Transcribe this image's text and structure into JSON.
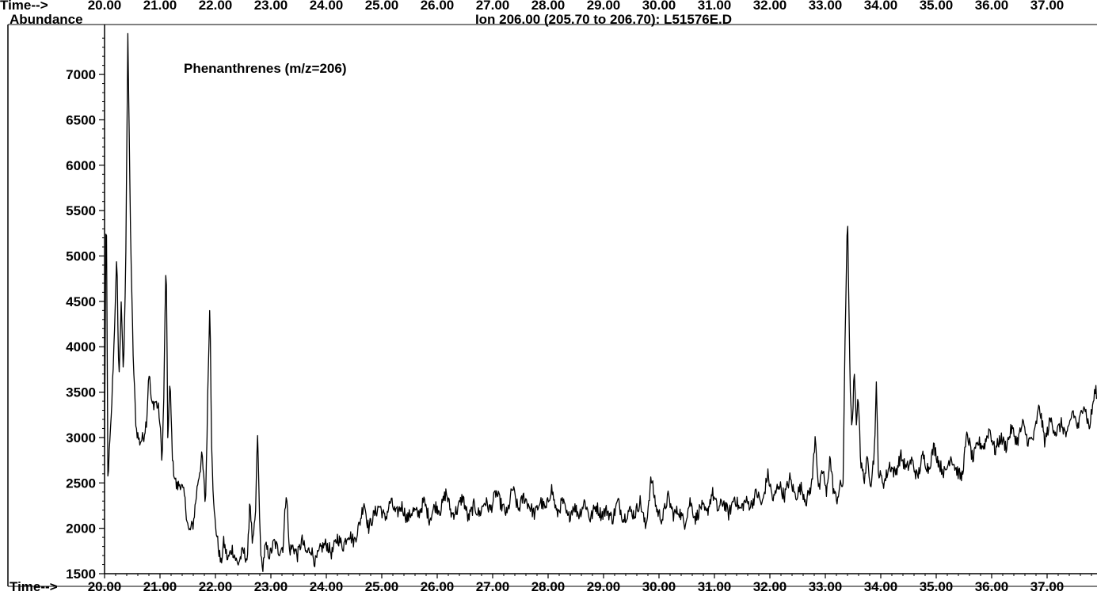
{
  "header": {
    "top_strip_label": "Time-->",
    "ylabel": "Abundance",
    "title": "Ion 206.00 (205.70 to 206.70): L51576E.D",
    "annotation": "Phenanthrenes (m/z=206)",
    "xlabel": "Time-->"
  },
  "chart_data": {
    "type": "line",
    "title": "Ion 206.00 (205.70 to 206.70): L51576E.D",
    "annotation": "Phenanthrenes (m/z=206)",
    "xlabel": "Time-->",
    "ylabel": "Abundance",
    "xlim": [
      20.0,
      37.9
    ],
    "ylim": [
      1500,
      7550
    ],
    "x_tick_labels": [
      "20.00",
      "21.00",
      "22.00",
      "23.00",
      "24.00",
      "25.00",
      "26.00",
      "27.00",
      "28.00",
      "29.00",
      "30.00",
      "31.00",
      "32.00",
      "33.00",
      "34.00",
      "35.00",
      "36.00",
      "37.00"
    ],
    "y_tick_labels": [
      "1500",
      "2000",
      "2500",
      "3000",
      "3500",
      "4000",
      "4500",
      "5000",
      "5500",
      "6000",
      "6500",
      "7000"
    ],
    "grid": false,
    "series_color": "#000000",
    "anchors": [
      [
        20.0,
        2900
      ],
      [
        20.03,
        5800
      ],
      [
        20.06,
        2550
      ],
      [
        20.12,
        3200
      ],
      [
        20.18,
        4200
      ],
      [
        20.22,
        5000
      ],
      [
        20.26,
        3600
      ],
      [
        20.3,
        4500
      ],
      [
        20.34,
        3700
      ],
      [
        20.38,
        4800
      ],
      [
        20.42,
        7450
      ],
      [
        20.47,
        5200
      ],
      [
        20.52,
        3800
      ],
      [
        20.57,
        3100
      ],
      [
        20.63,
        2950
      ],
      [
        20.7,
        3000
      ],
      [
        20.76,
        3200
      ],
      [
        20.8,
        3750
      ],
      [
        20.85,
        3350
      ],
      [
        20.92,
        3400
      ],
      [
        20.98,
        3300
      ],
      [
        21.04,
        2750
      ],
      [
        21.07,
        3500
      ],
      [
        21.11,
        5050
      ],
      [
        21.14,
        3000
      ],
      [
        21.18,
        3600
      ],
      [
        21.23,
        2700
      ],
      [
        21.3,
        2450
      ],
      [
        21.37,
        2500
      ],
      [
        21.44,
        2350
      ],
      [
        21.52,
        1950
      ],
      [
        21.6,
        2050
      ],
      [
        21.68,
        2500
      ],
      [
        21.76,
        2800
      ],
      [
        21.82,
        2250
      ],
      [
        21.87,
        3700
      ],
      [
        21.9,
        4500
      ],
      [
        21.93,
        3000
      ],
      [
        21.97,
        2200
      ],
      [
        22.04,
        1850
      ],
      [
        22.1,
        1600
      ],
      [
        22.15,
        1850
      ],
      [
        22.22,
        1650
      ],
      [
        22.3,
        1780
      ],
      [
        22.4,
        1600
      ],
      [
        22.5,
        1750
      ],
      [
        22.58,
        1650
      ],
      [
        22.62,
        2350
      ],
      [
        22.67,
        1800
      ],
      [
        22.72,
        2100
      ],
      [
        22.76,
        3050
      ],
      [
        22.8,
        2000
      ],
      [
        22.84,
        1520
      ],
      [
        22.9,
        1800
      ],
      [
        22.98,
        1700
      ],
      [
        23.06,
        1850
      ],
      [
        23.14,
        1750
      ],
      [
        23.22,
        1800
      ],
      [
        23.28,
        2450
      ],
      [
        23.33,
        1750
      ],
      [
        23.4,
        1800
      ],
      [
        23.48,
        1700
      ],
      [
        23.56,
        1870
      ],
      [
        23.64,
        1720
      ],
      [
        23.72,
        1780
      ],
      [
        23.8,
        1620
      ],
      [
        23.9,
        1780
      ],
      [
        24.0,
        1830
      ],
      [
        24.1,
        1720
      ],
      [
        24.2,
        1900
      ],
      [
        24.3,
        1800
      ],
      [
        24.4,
        1950
      ],
      [
        24.5,
        1850
      ],
      [
        24.6,
        2050
      ],
      [
        24.68,
        2300
      ],
      [
        24.76,
        2000
      ],
      [
        24.86,
        2150
      ],
      [
        24.96,
        2250
      ],
      [
        25.06,
        2100
      ],
      [
        25.16,
        2300
      ],
      [
        25.26,
        2150
      ],
      [
        25.36,
        2250
      ],
      [
        25.46,
        2100
      ],
      [
        25.56,
        2200
      ],
      [
        25.66,
        2150
      ],
      [
        25.76,
        2300
      ],
      [
        25.86,
        2100
      ],
      [
        25.96,
        2250
      ],
      [
        26.06,
        2200
      ],
      [
        26.16,
        2400
      ],
      [
        26.26,
        2150
      ],
      [
        26.36,
        2200
      ],
      [
        26.46,
        2350
      ],
      [
        26.56,
        2100
      ],
      [
        26.66,
        2250
      ],
      [
        26.76,
        2150
      ],
      [
        26.86,
        2300
      ],
      [
        26.96,
        2200
      ],
      [
        27.06,
        2400
      ],
      [
        27.16,
        2250
      ],
      [
        27.26,
        2150
      ],
      [
        27.36,
        2450
      ],
      [
        27.46,
        2200
      ],
      [
        27.56,
        2350
      ],
      [
        27.66,
        2250
      ],
      [
        27.76,
        2150
      ],
      [
        27.86,
        2300
      ],
      [
        27.96,
        2200
      ],
      [
        28.06,
        2450
      ],
      [
        28.16,
        2150
      ],
      [
        28.26,
        2300
      ],
      [
        28.36,
        2100
      ],
      [
        28.46,
        2250
      ],
      [
        28.56,
        2150
      ],
      [
        28.66,
        2300
      ],
      [
        28.76,
        2100
      ],
      [
        28.86,
        2250
      ],
      [
        28.96,
        2150
      ],
      [
        29.06,
        2200
      ],
      [
        29.16,
        2100
      ],
      [
        29.26,
        2300
      ],
      [
        29.36,
        2100
      ],
      [
        29.46,
        2200
      ],
      [
        29.56,
        2150
      ],
      [
        29.66,
        2300
      ],
      [
        29.76,
        2000
      ],
      [
        29.86,
        2550
      ],
      [
        29.96,
        2200
      ],
      [
        30.06,
        2100
      ],
      [
        30.16,
        2350
      ],
      [
        30.26,
        2150
      ],
      [
        30.36,
        2200
      ],
      [
        30.46,
        2050
      ],
      [
        30.56,
        2300
      ],
      [
        30.66,
        2100
      ],
      [
        30.76,
        2250
      ],
      [
        30.86,
        2150
      ],
      [
        30.96,
        2400
      ],
      [
        31.06,
        2200
      ],
      [
        31.16,
        2300
      ],
      [
        31.26,
        2150
      ],
      [
        31.36,
        2350
      ],
      [
        31.46,
        2200
      ],
      [
        31.56,
        2300
      ],
      [
        31.66,
        2250
      ],
      [
        31.76,
        2400
      ],
      [
        31.86,
        2250
      ],
      [
        31.96,
        2600
      ],
      [
        32.06,
        2300
      ],
      [
        32.16,
        2500
      ],
      [
        32.26,
        2350
      ],
      [
        32.36,
        2550
      ],
      [
        32.46,
        2350
      ],
      [
        32.56,
        2450
      ],
      [
        32.66,
        2300
      ],
      [
        32.76,
        2500
      ],
      [
        32.82,
        3050
      ],
      [
        32.88,
        2400
      ],
      [
        32.96,
        2650
      ],
      [
        33.02,
        2350
      ],
      [
        33.08,
        2800
      ],
      [
        33.14,
        2450
      ],
      [
        33.2,
        2300
      ],
      [
        33.26,
        2450
      ],
      [
        33.32,
        2500
      ],
      [
        33.36,
        4200
      ],
      [
        33.4,
        5500
      ],
      [
        33.44,
        3800
      ],
      [
        33.48,
        3000
      ],
      [
        33.52,
        3700
      ],
      [
        33.56,
        3200
      ],
      [
        33.6,
        3450
      ],
      [
        33.64,
        2700
      ],
      [
        33.7,
        2550
      ],
      [
        33.76,
        2750
      ],
      [
        33.82,
        2500
      ],
      [
        33.88,
        2800
      ],
      [
        33.92,
        3550
      ],
      [
        33.96,
        2600
      ],
      [
        34.06,
        2500
      ],
      [
        34.16,
        2700
      ],
      [
        34.26,
        2600
      ],
      [
        34.36,
        2800
      ],
      [
        34.46,
        2650
      ],
      [
        34.56,
        2750
      ],
      [
        34.66,
        2550
      ],
      [
        34.76,
        2800
      ],
      [
        34.86,
        2650
      ],
      [
        34.96,
        2900
      ],
      [
        35.06,
        2700
      ],
      [
        35.16,
        2600
      ],
      [
        35.26,
        2800
      ],
      [
        35.36,
        2650
      ],
      [
        35.46,
        2550
      ],
      [
        35.56,
        3050
      ],
      [
        35.66,
        2750
      ],
      [
        35.76,
        2950
      ],
      [
        35.86,
        2900
      ],
      [
        35.96,
        3100
      ],
      [
        36.06,
        2850
      ],
      [
        36.16,
        3000
      ],
      [
        36.26,
        2900
      ],
      [
        36.36,
        3100
      ],
      [
        36.46,
        2950
      ],
      [
        36.56,
        3150
      ],
      [
        36.66,
        2950
      ],
      [
        36.76,
        3000
      ],
      [
        36.86,
        3350
      ],
      [
        36.96,
        2950
      ],
      [
        37.06,
        3200
      ],
      [
        37.16,
        3050
      ],
      [
        37.26,
        3150
      ],
      [
        37.36,
        3000
      ],
      [
        37.46,
        3300
      ],
      [
        37.56,
        3100
      ],
      [
        37.66,
        3400
      ],
      [
        37.76,
        3100
      ],
      [
        37.86,
        3500
      ]
    ],
    "noise_amplitude": 75
  }
}
